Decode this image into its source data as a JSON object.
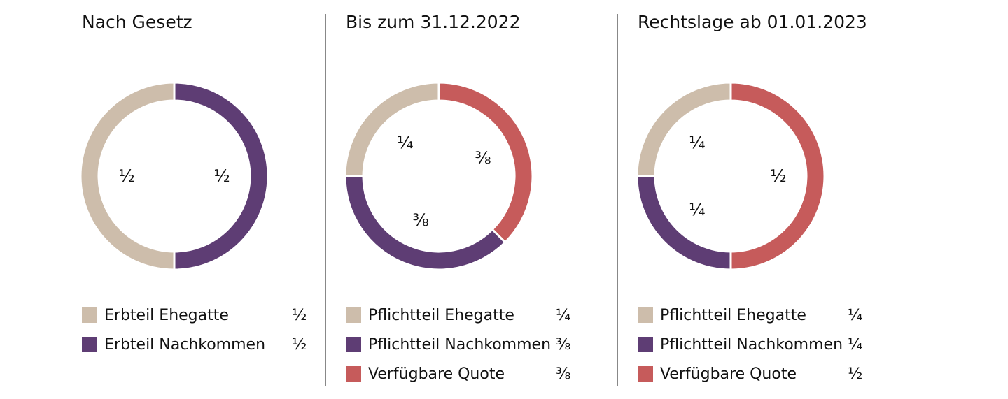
{
  "colors": {
    "ehegatte": "#cdbdab",
    "nachkommen": "#5e3d74",
    "quote": "#c65b5b"
  },
  "chart_data": [
    {
      "type": "pie",
      "title": "Nach Gesetz",
      "segments_clockwise_from_top": [
        {
          "name": "Erbteil Nachkommen",
          "value": 0.5,
          "label": "½",
          "color": "#5e3d74"
        },
        {
          "name": "Erbteil Ehegatte",
          "value": 0.5,
          "label": "½",
          "color": "#cdbdab"
        }
      ],
      "legend": [
        {
          "name": "Erbteil Ehegatte",
          "value_label": "½",
          "color": "#cdbdab"
        },
        {
          "name": "Erbteil Nachkommen",
          "value_label": "½",
          "color": "#5e3d74"
        }
      ]
    },
    {
      "type": "pie",
      "title": "Bis zum 31.12.2022",
      "segments_clockwise_from_top": [
        {
          "name": "Verfügbare Quote",
          "value": 0.375,
          "label": "3/8",
          "color": "#c65b5b"
        },
        {
          "name": "Pflichtteil Nachkommen",
          "value": 0.375,
          "label": "3/8",
          "color": "#5e3d74"
        },
        {
          "name": "Pflichtteil Ehegatte",
          "value": 0.25,
          "label": "1/4",
          "color": "#cdbdab"
        }
      ],
      "legend": [
        {
          "name": "Pflichtteil Ehegatte",
          "value_label": "¼",
          "color": "#cdbdab"
        },
        {
          "name": "Pflichtteil Nachkommen",
          "value_label": "⅜",
          "color": "#5e3d74"
        },
        {
          "name": "Verfügbare Quote",
          "value_label": "⅜",
          "color": "#c65b5b"
        }
      ]
    },
    {
      "type": "pie",
      "title": "Rechtslage ab 01.01.2023",
      "segments_clockwise_from_top": [
        {
          "name": "Verfügbare Quote",
          "value": 0.5,
          "label": "1/2",
          "color": "#c65b5b"
        },
        {
          "name": "Pflichtteil Nachkommen",
          "value": 0.25,
          "label": "1/4",
          "color": "#5e3d74"
        },
        {
          "name": "Pflichtteil Ehegatte",
          "value": 0.25,
          "label": "1/4",
          "color": "#cdbdab"
        }
      ],
      "legend": [
        {
          "name": "Pflichtteil Ehegatte",
          "value_label": "¼",
          "color": "#cdbdab"
        },
        {
          "name": "Pflichtteil Nachkommen",
          "value_label": "¼",
          "color": "#5e3d74"
        },
        {
          "name": "Verfügbare Quote",
          "value_label": "½",
          "color": "#c65b5b"
        }
      ]
    }
  ]
}
